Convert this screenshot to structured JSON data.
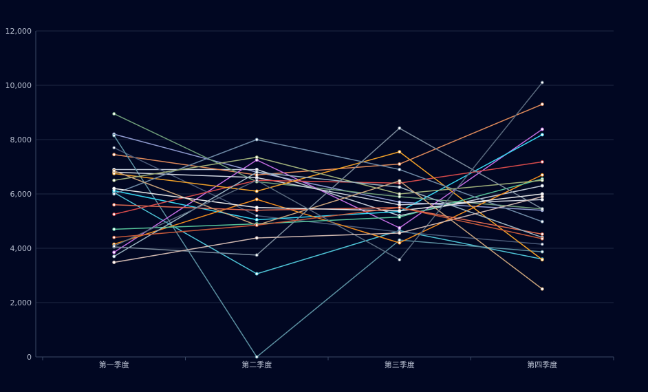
{
  "colors": {
    "background": "#010722",
    "grid": "#1f2a44",
    "axis": "#3a4a66",
    "tick_text": "#b8bfd0"
  },
  "chart_data": {
    "type": "line",
    "categories": [
      "第一季度",
      "第二季度",
      "第三季度",
      "第四季度"
    ],
    "ylim": [
      0,
      12000
    ],
    "yticks": [
      "0",
      "2,000",
      "4,000",
      "6,000",
      "8,000",
      "10,000",
      "12,000"
    ],
    "grid": true,
    "series": [
      {
        "color": "#8f9bd0",
        "values": [
          8200,
          6800,
          5700,
          5400
        ]
      },
      {
        "color": "#c0c9d6",
        "values": [
          6900,
          6900,
          5200,
          6300
        ]
      },
      {
        "color": "#e08a5a",
        "values": [
          7450,
          6700,
          7100,
          9300
        ]
      },
      {
        "color": "#4ec3d6",
        "values": [
          6050,
          3060,
          4650,
          3600
        ]
      },
      {
        "color": "#6f9e7a",
        "values": [
          8950,
          6450,
          5900,
          5450
        ]
      },
      {
        "color": "#4a5a78",
        "values": [
          7700,
          5200,
          4600,
          4150
        ]
      },
      {
        "color": "#5b8fa0",
        "values": [
          8150,
          0,
          4300,
          3870
        ]
      },
      {
        "color": "#c06ce0",
        "values": [
          3850,
          7250,
          4750,
          8380
        ]
      },
      {
        "color": "#36d6f0",
        "values": [
          6120,
          5050,
          5350,
          8180
        ]
      },
      {
        "color": "#d0d6e0",
        "values": [
          6800,
          6600,
          5600,
          5790
        ]
      },
      {
        "color": "#d64a4a",
        "values": [
          5250,
          6500,
          6400,
          7180
        ]
      },
      {
        "color": "#f0a028",
        "values": [
          6750,
          6100,
          7550,
          3580
        ]
      },
      {
        "color": "#f08c1e",
        "values": [
          4150,
          5800,
          4200,
          6700
        ]
      },
      {
        "color": "#56c49a",
        "values": [
          4700,
          4900,
          5150,
          6550
        ]
      },
      {
        "color": "#6e8aa6",
        "values": [
          6000,
          8000,
          6900,
          4980
        ]
      },
      {
        "color": "#9fb07a",
        "values": [
          6500,
          7350,
          6000,
          6500
        ]
      },
      {
        "color": "#e06a50",
        "values": [
          5600,
          5400,
          5500,
          4520
        ]
      },
      {
        "color": "#9ab3c0",
        "values": [
          3700,
          6800,
          6250,
          4400
        ]
      },
      {
        "color": "#7a8a9a",
        "values": [
          4050,
          3750,
          8420,
          5450
        ]
      },
      {
        "color": "#c8a27a",
        "values": [
          6850,
          4850,
          6480,
          2500
        ]
      },
      {
        "color": "#e8e8e8",
        "values": [
          6200,
          5500,
          5380,
          6000
        ]
      },
      {
        "color": "#5a6a7e",
        "values": [
          4080,
          6500,
          3580,
          10100
        ]
      },
      {
        "color": "#d0b8b0",
        "values": [
          3480,
          4380,
          4560,
          5900
        ]
      },
      {
        "color": "#c85a3a",
        "values": [
          4400,
          4850,
          5500,
          4350
        ]
      }
    ]
  }
}
